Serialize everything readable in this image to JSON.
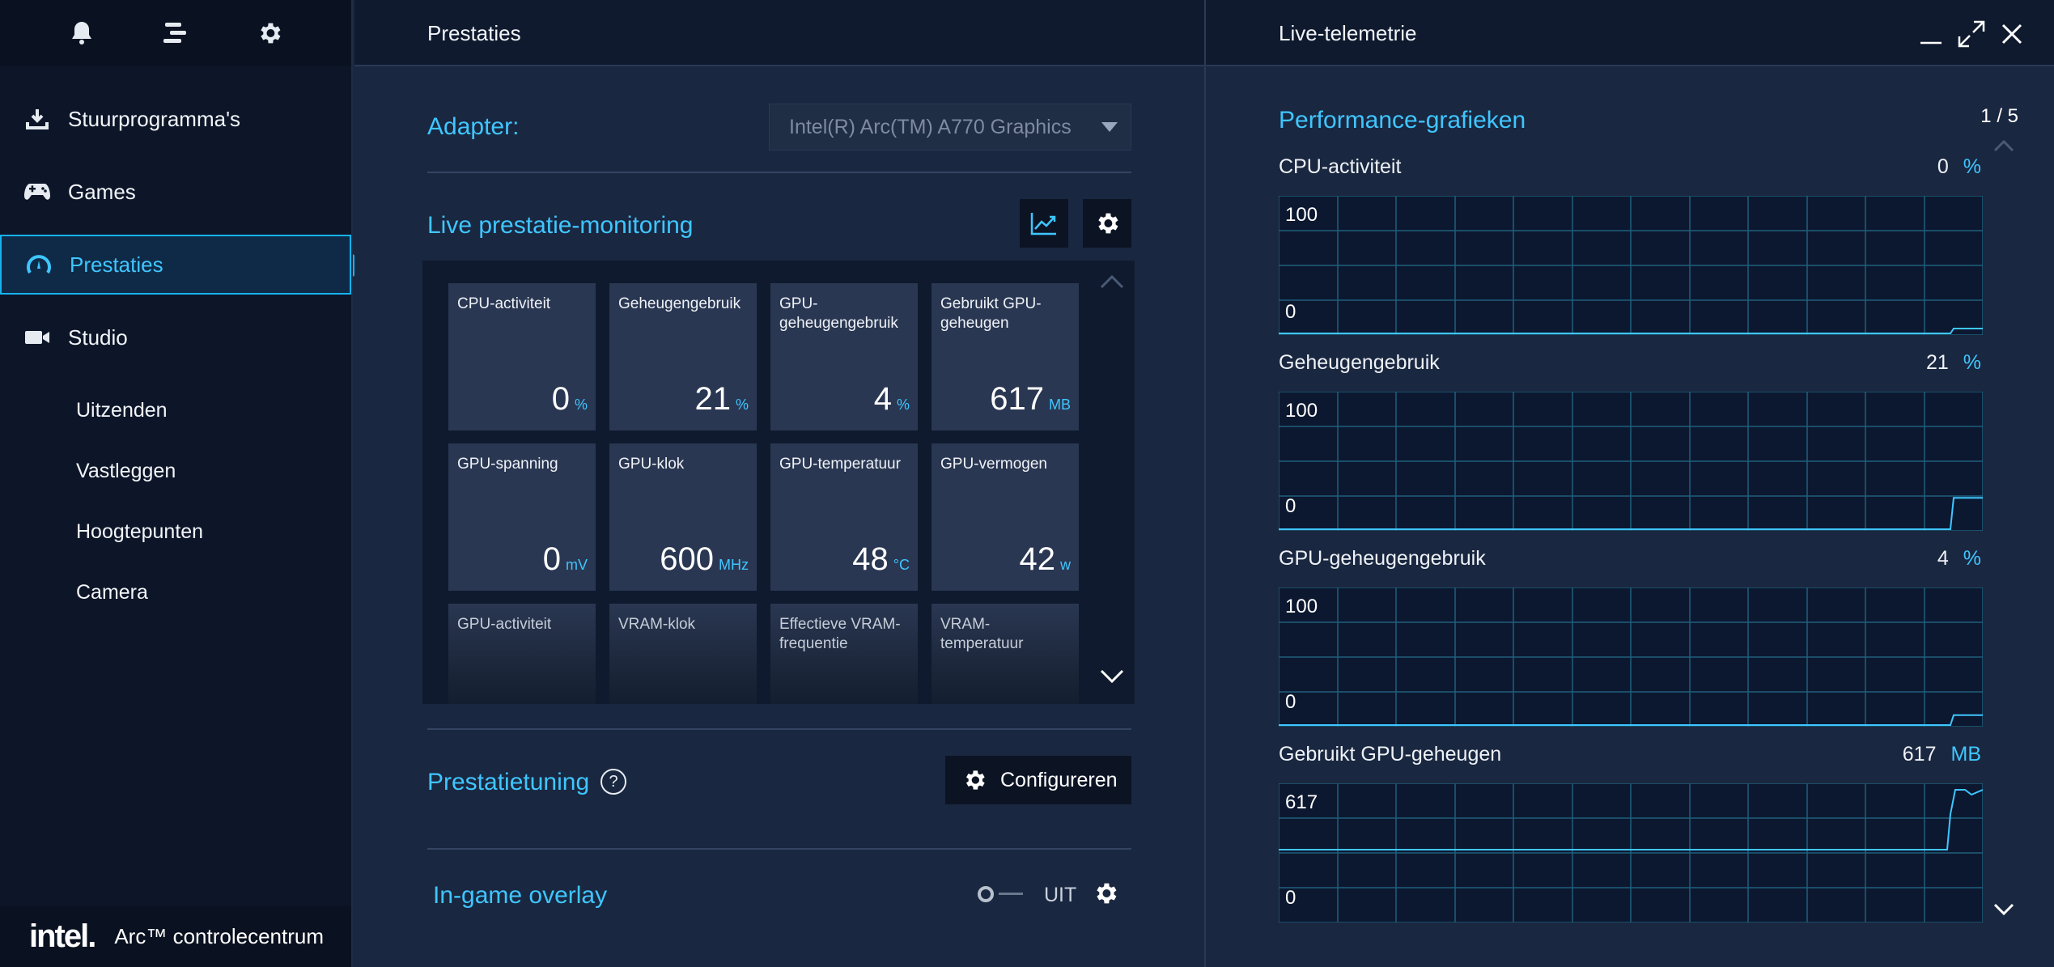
{
  "sidebar": {
    "top_icons": [
      "bell-icon",
      "menu-icon",
      "gear-icon"
    ],
    "nav": [
      {
        "label": "Stuurprogramma's",
        "icon": "download-icon"
      },
      {
        "label": "Games",
        "icon": "gamepad-icon"
      },
      {
        "label": "Prestaties",
        "icon": "gauge-icon",
        "active": true
      },
      {
        "label": "Studio",
        "icon": "camera-video-icon"
      }
    ],
    "sub_items": [
      "Uitzenden",
      "Vastleggen",
      "Hoogtepunten",
      "Camera"
    ],
    "brand": {
      "logo": "intel.",
      "app_name": "Arc™ controlecentrum"
    }
  },
  "center": {
    "title": "Prestaties",
    "adapter": {
      "label": "Adapter:",
      "selected": "Intel(R) Arc(TM) A770 Graphics"
    },
    "monitoring": {
      "title": "Live prestatie-monitoring",
      "tiles": [
        {
          "label": "CPU-activiteit",
          "value": "0",
          "unit": "%"
        },
        {
          "label": "Geheugengebruik",
          "value": "21",
          "unit": "%"
        },
        {
          "label": "GPU-geheugengebruik",
          "value": "4",
          "unit": "%"
        },
        {
          "label": "Gebruikt GPU-geheugen",
          "value": "617",
          "unit": "MB"
        },
        {
          "label": "GPU-spanning",
          "value": "0",
          "unit": "mV"
        },
        {
          "label": "GPU-klok",
          "value": "600",
          "unit": "MHz"
        },
        {
          "label": "GPU-temperatuur",
          "value": "48",
          "unit": "°C"
        },
        {
          "label": "GPU-vermogen",
          "value": "42",
          "unit": "w"
        },
        {
          "label": "GPU-activiteit"
        },
        {
          "label": "VRAM-klok"
        },
        {
          "label": "Effectieve VRAM-frequentie"
        },
        {
          "label": "VRAM-temperatuur"
        }
      ]
    },
    "tuning": {
      "title": "Prestatietuning",
      "help": "?",
      "button": "Configureren"
    },
    "overlay": {
      "title": "In-game overlay",
      "toggle_state": "UIT",
      "toggle_on": false
    }
  },
  "right": {
    "title": "Live-telemetrie",
    "heading": "Performance-grafieken",
    "page": "1 / 5",
    "graphs": [
      {
        "label": "CPU-activiteit",
        "value": "0",
        "unit": "%",
        "max": "100",
        "min": "0"
      },
      {
        "label": "Geheugengebruik",
        "value": "21",
        "unit": "%",
        "max": "100",
        "min": "0"
      },
      {
        "label": "GPU-geheugengebruik",
        "value": "4",
        "unit": "%",
        "max": "100",
        "min": "0"
      },
      {
        "label": "Gebruikt GPU-geheugen",
        "value": "617",
        "unit": "MB",
        "max": "617",
        "min": "0"
      }
    ]
  },
  "colors": {
    "accent": "#3fc6ff",
    "panel": "#1a2740",
    "tile": "#2a3752",
    "sidebar": "#0d1628"
  }
}
